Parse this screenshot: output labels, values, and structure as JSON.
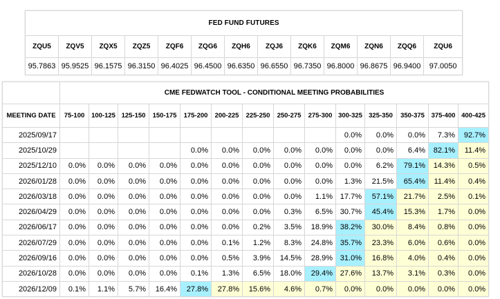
{
  "futures": {
    "title": "FED FUND FUTURES",
    "contracts": [
      {
        "code": "ZQU5",
        "price": "95.7863"
      },
      {
        "code": "ZQV5",
        "price": "95.9525"
      },
      {
        "code": "ZQX5",
        "price": "96.1575"
      },
      {
        "code": "ZQZ5",
        "price": "96.3150"
      },
      {
        "code": "ZQF6",
        "price": "96.4025"
      },
      {
        "code": "ZQG6",
        "price": "96.4500"
      },
      {
        "code": "ZQH6",
        "price": "96.6350"
      },
      {
        "code": "ZQJ6",
        "price": "96.6550"
      },
      {
        "code": "ZQK6",
        "price": "96.7350"
      },
      {
        "code": "ZQM6",
        "price": "96.8000"
      },
      {
        "code": "ZQN6",
        "price": "96.8675"
      },
      {
        "code": "ZQQ6",
        "price": "96.9400"
      },
      {
        "code": "ZQU6",
        "price": "97.0050"
      }
    ]
  },
  "fedwatch": {
    "title": "CME FEDWATCH TOOL - CONDITIONAL MEETING PROBABILITIES",
    "date_header": "MEETING DATE",
    "ranges": [
      "75-100",
      "100-125",
      "125-150",
      "150-175",
      "175-200",
      "200-225",
      "225-250",
      "250-275",
      "275-300",
      "300-325",
      "325-350",
      "350-375",
      "375-400",
      "400-425"
    ],
    "colors": {
      "highlight_max": "#a7f0ff",
      "highlight_above_current": "#ffffd6"
    },
    "rows": [
      {
        "date": "2025/09/17",
        "probs": [
          "",
          "",
          "",
          "",
          "",
          "",
          "",
          "",
          "",
          "0.0%",
          "0.0%",
          "0.0%",
          "7.3%",
          "92.7%"
        ],
        "max_index": 13
      },
      {
        "date": "2025/10/29",
        "probs": [
          "",
          "",
          "",
          "",
          "0.0%",
          "0.0%",
          "0.0%",
          "0.0%",
          "0.0%",
          "0.0%",
          "0.0%",
          "6.4%",
          "82.1%",
          "11.4%"
        ],
        "max_index": 12
      },
      {
        "date": "2025/12/10",
        "probs": [
          "0.0%",
          "0.0%",
          "0.0%",
          "0.0%",
          "0.0%",
          "0.0%",
          "0.0%",
          "0.0%",
          "0.0%",
          "0.0%",
          "6.2%",
          "79.1%",
          "14.3%",
          "0.5%"
        ],
        "max_index": 11
      },
      {
        "date": "2026/01/28",
        "probs": [
          "0.0%",
          "0.0%",
          "0.0%",
          "0.0%",
          "0.0%",
          "0.0%",
          "0.0%",
          "0.0%",
          "0.0%",
          "1.3%",
          "21.5%",
          "65.4%",
          "11.4%",
          "0.4%"
        ],
        "max_index": 11
      },
      {
        "date": "2026/03/18",
        "probs": [
          "0.0%",
          "0.0%",
          "0.0%",
          "0.0%",
          "0.0%",
          "0.0%",
          "0.0%",
          "0.0%",
          "1.1%",
          "17.7%",
          "57.1%",
          "21.7%",
          "2.5%",
          "0.1%"
        ],
        "max_index": 10
      },
      {
        "date": "2026/04/29",
        "probs": [
          "0.0%",
          "0.0%",
          "0.0%",
          "0.0%",
          "0.0%",
          "0.0%",
          "0.0%",
          "0.3%",
          "6.5%",
          "30.7%",
          "45.4%",
          "15.3%",
          "1.7%",
          "0.0%"
        ],
        "max_index": 10
      },
      {
        "date": "2026/06/17",
        "probs": [
          "0.0%",
          "0.0%",
          "0.0%",
          "0.0%",
          "0.0%",
          "0.0%",
          "0.2%",
          "3.5%",
          "18.9%",
          "38.2%",
          "30.0%",
          "8.4%",
          "0.8%",
          "0.0%"
        ],
        "max_index": 9
      },
      {
        "date": "2026/07/29",
        "probs": [
          "0.0%",
          "0.0%",
          "0.0%",
          "0.0%",
          "0.0%",
          "0.1%",
          "1.2%",
          "8.3%",
          "24.8%",
          "35.7%",
          "23.3%",
          "6.0%",
          "0.6%",
          "0.0%"
        ],
        "max_index": 9
      },
      {
        "date": "2026/09/16",
        "probs": [
          "0.0%",
          "0.0%",
          "0.0%",
          "0.0%",
          "0.0%",
          "0.5%",
          "3.9%",
          "14.5%",
          "28.9%",
          "31.0%",
          "16.8%",
          "4.0%",
          "0.4%",
          "0.0%"
        ],
        "max_index": 9
      },
      {
        "date": "2026/10/28",
        "probs": [
          "0.0%",
          "0.0%",
          "0.0%",
          "0.0%",
          "0.1%",
          "1.3%",
          "6.5%",
          "18.0%",
          "29.4%",
          "27.6%",
          "13.7%",
          "3.1%",
          "0.3%",
          "0.0%"
        ],
        "max_index": 8
      },
      {
        "date": "2026/12/09",
        "probs": [
          "0.1%",
          "1.1%",
          "5.7%",
          "16.4%",
          "27.8%",
          "27.8%",
          "15.6%",
          "4.6%",
          "0.7%",
          "0.0%",
          "0.0%",
          "0.0%",
          "0.0%",
          "0.0%"
        ],
        "max_index": 4
      }
    ]
  }
}
